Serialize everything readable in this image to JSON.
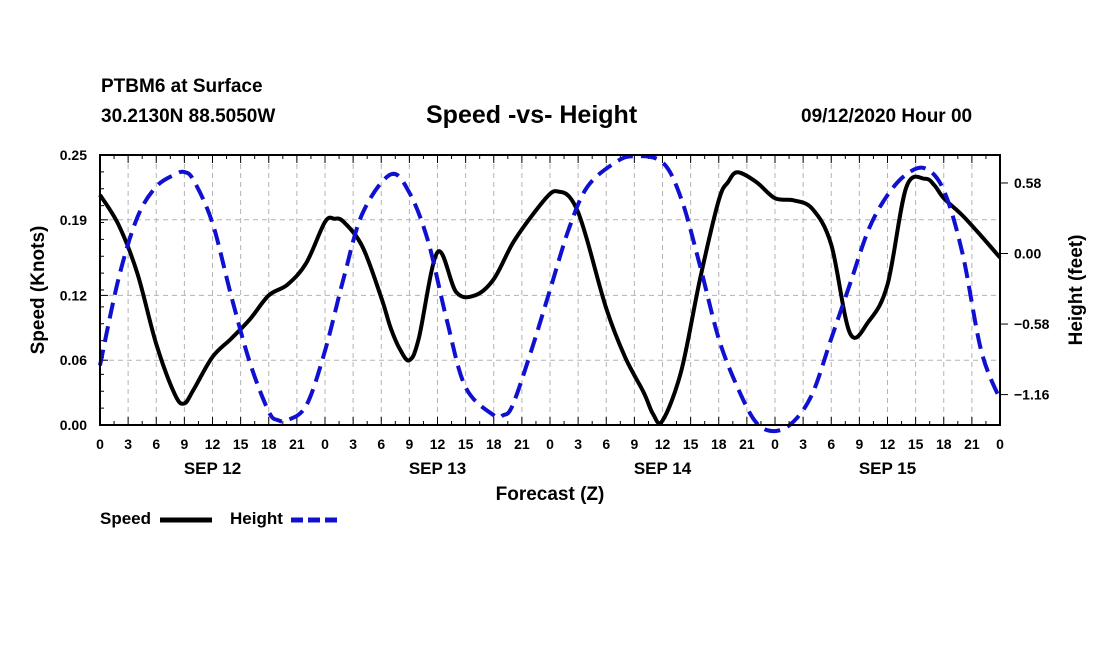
{
  "header": {
    "station": "PTBM6 at Surface",
    "coords": "30.2130N 88.5050W",
    "title": "Speed -vs- Height",
    "datetime": "09/12/2020 Hour 00"
  },
  "legend": {
    "speed_label": "Speed",
    "height_label": "Height",
    "speed_color": "#000000",
    "height_color": "#1010d0"
  },
  "chart_data": {
    "type": "line",
    "title": "Speed -vs- Height",
    "xlabel": "Forecast (Z)",
    "ylabel": "Speed (Knots)",
    "y2label": "Height (feet)",
    "x_hours_range": [
      0,
      96
    ],
    "x_tick_labels": [
      "0",
      "3",
      "6",
      "9",
      "12",
      "15",
      "18",
      "21",
      "0",
      "3",
      "6",
      "9",
      "12",
      "15",
      "18",
      "21",
      "0",
      "3",
      "6",
      "9",
      "12",
      "15",
      "18",
      "21",
      "0",
      "3",
      "6",
      "9",
      "12",
      "15",
      "18",
      "21",
      "0"
    ],
    "day_labels": [
      {
        "label": "SEP 12",
        "hour": 12
      },
      {
        "label": "SEP 13",
        "hour": 36
      },
      {
        "label": "SEP 14",
        "hour": 60
      },
      {
        "label": "SEP 15",
        "hour": 84
      }
    ],
    "ylim": [
      0,
      0.25
    ],
    "y_ticks": [
      0.0,
      0.06,
      0.12,
      0.19,
      0.25
    ],
    "y_tick_labels": [
      "0.00",
      "0.06",
      "0.12",
      "0.19",
      "0.25"
    ],
    "y2lim": [
      -1.41,
      0.81
    ],
    "y2_ticks": [
      0.58,
      0.0,
      -0.58,
      -1.16
    ],
    "y2_tick_labels": [
      "0.58",
      "0.00",
      "−0.58",
      "−1.16"
    ],
    "grid": true,
    "series": [
      {
        "name": "Speed",
        "axis": "left",
        "style": "solid",
        "x": [
          0,
          2,
          4,
          6,
          8,
          9,
          10,
          12,
          14,
          16,
          18,
          20,
          22,
          24,
          25,
          26,
          28,
          30,
          31,
          32,
          33,
          34,
          36,
          38,
          40,
          42,
          44,
          46,
          48,
          49,
          50,
          51,
          52,
          54,
          56,
          58,
          59,
          60,
          62,
          64,
          66,
          67,
          68,
          70,
          72,
          74,
          76,
          78,
          80,
          82,
          84,
          86,
          88,
          89,
          90,
          92,
          94,
          96
        ],
        "values": [
          0.213,
          0.185,
          0.14,
          0.075,
          0.028,
          0.02,
          0.033,
          0.063,
          0.08,
          0.098,
          0.12,
          0.13,
          0.15,
          0.188,
          0.191,
          0.188,
          0.165,
          0.118,
          0.09,
          0.07,
          0.06,
          0.08,
          0.16,
          0.123,
          0.12,
          0.135,
          0.168,
          0.193,
          0.214,
          0.216,
          0.212,
          0.197,
          0.17,
          0.108,
          0.063,
          0.03,
          0.01,
          0.004,
          0.05,
          0.135,
          0.208,
          0.225,
          0.234,
          0.225,
          0.21,
          0.208,
          0.2,
          0.167,
          0.085,
          0.096,
          0.13,
          0.22,
          0.228,
          0.222,
          0.21,
          0.194,
          0.175,
          0.155
        ]
      },
      {
        "name": "Height",
        "axis": "right",
        "style": "dashed",
        "x": [
          0,
          2,
          4,
          6,
          8,
          9,
          10,
          12,
          14,
          16,
          18,
          19,
          20,
          22,
          24,
          26,
          28,
          31,
          33,
          35,
          37,
          39,
          42,
          43,
          44,
          46,
          48,
          50,
          52,
          55,
          57,
          60,
          62,
          64,
          66,
          68,
          70,
          72,
          74,
          76,
          78,
          80,
          82,
          84,
          86,
          88,
          90,
          92,
          94,
          96
        ],
        "values": [
          -0.92,
          -0.2,
          0.3,
          0.55,
          0.65,
          0.67,
          0.6,
          0.25,
          -0.35,
          -0.9,
          -1.3,
          -1.37,
          -1.37,
          -1.25,
          -0.8,
          -0.2,
          0.33,
          0.65,
          0.5,
          0.1,
          -0.55,
          -1.1,
          -1.33,
          -1.33,
          -1.25,
          -0.8,
          -0.3,
          0.2,
          0.55,
          0.75,
          0.8,
          0.75,
          0.45,
          -0.1,
          -0.7,
          -1.1,
          -1.39,
          -1.46,
          -1.38,
          -1.15,
          -0.7,
          -0.25,
          0.2,
          0.48,
          0.65,
          0.7,
          0.52,
          0.0,
          -0.8,
          -1.2
        ]
      }
    ]
  }
}
